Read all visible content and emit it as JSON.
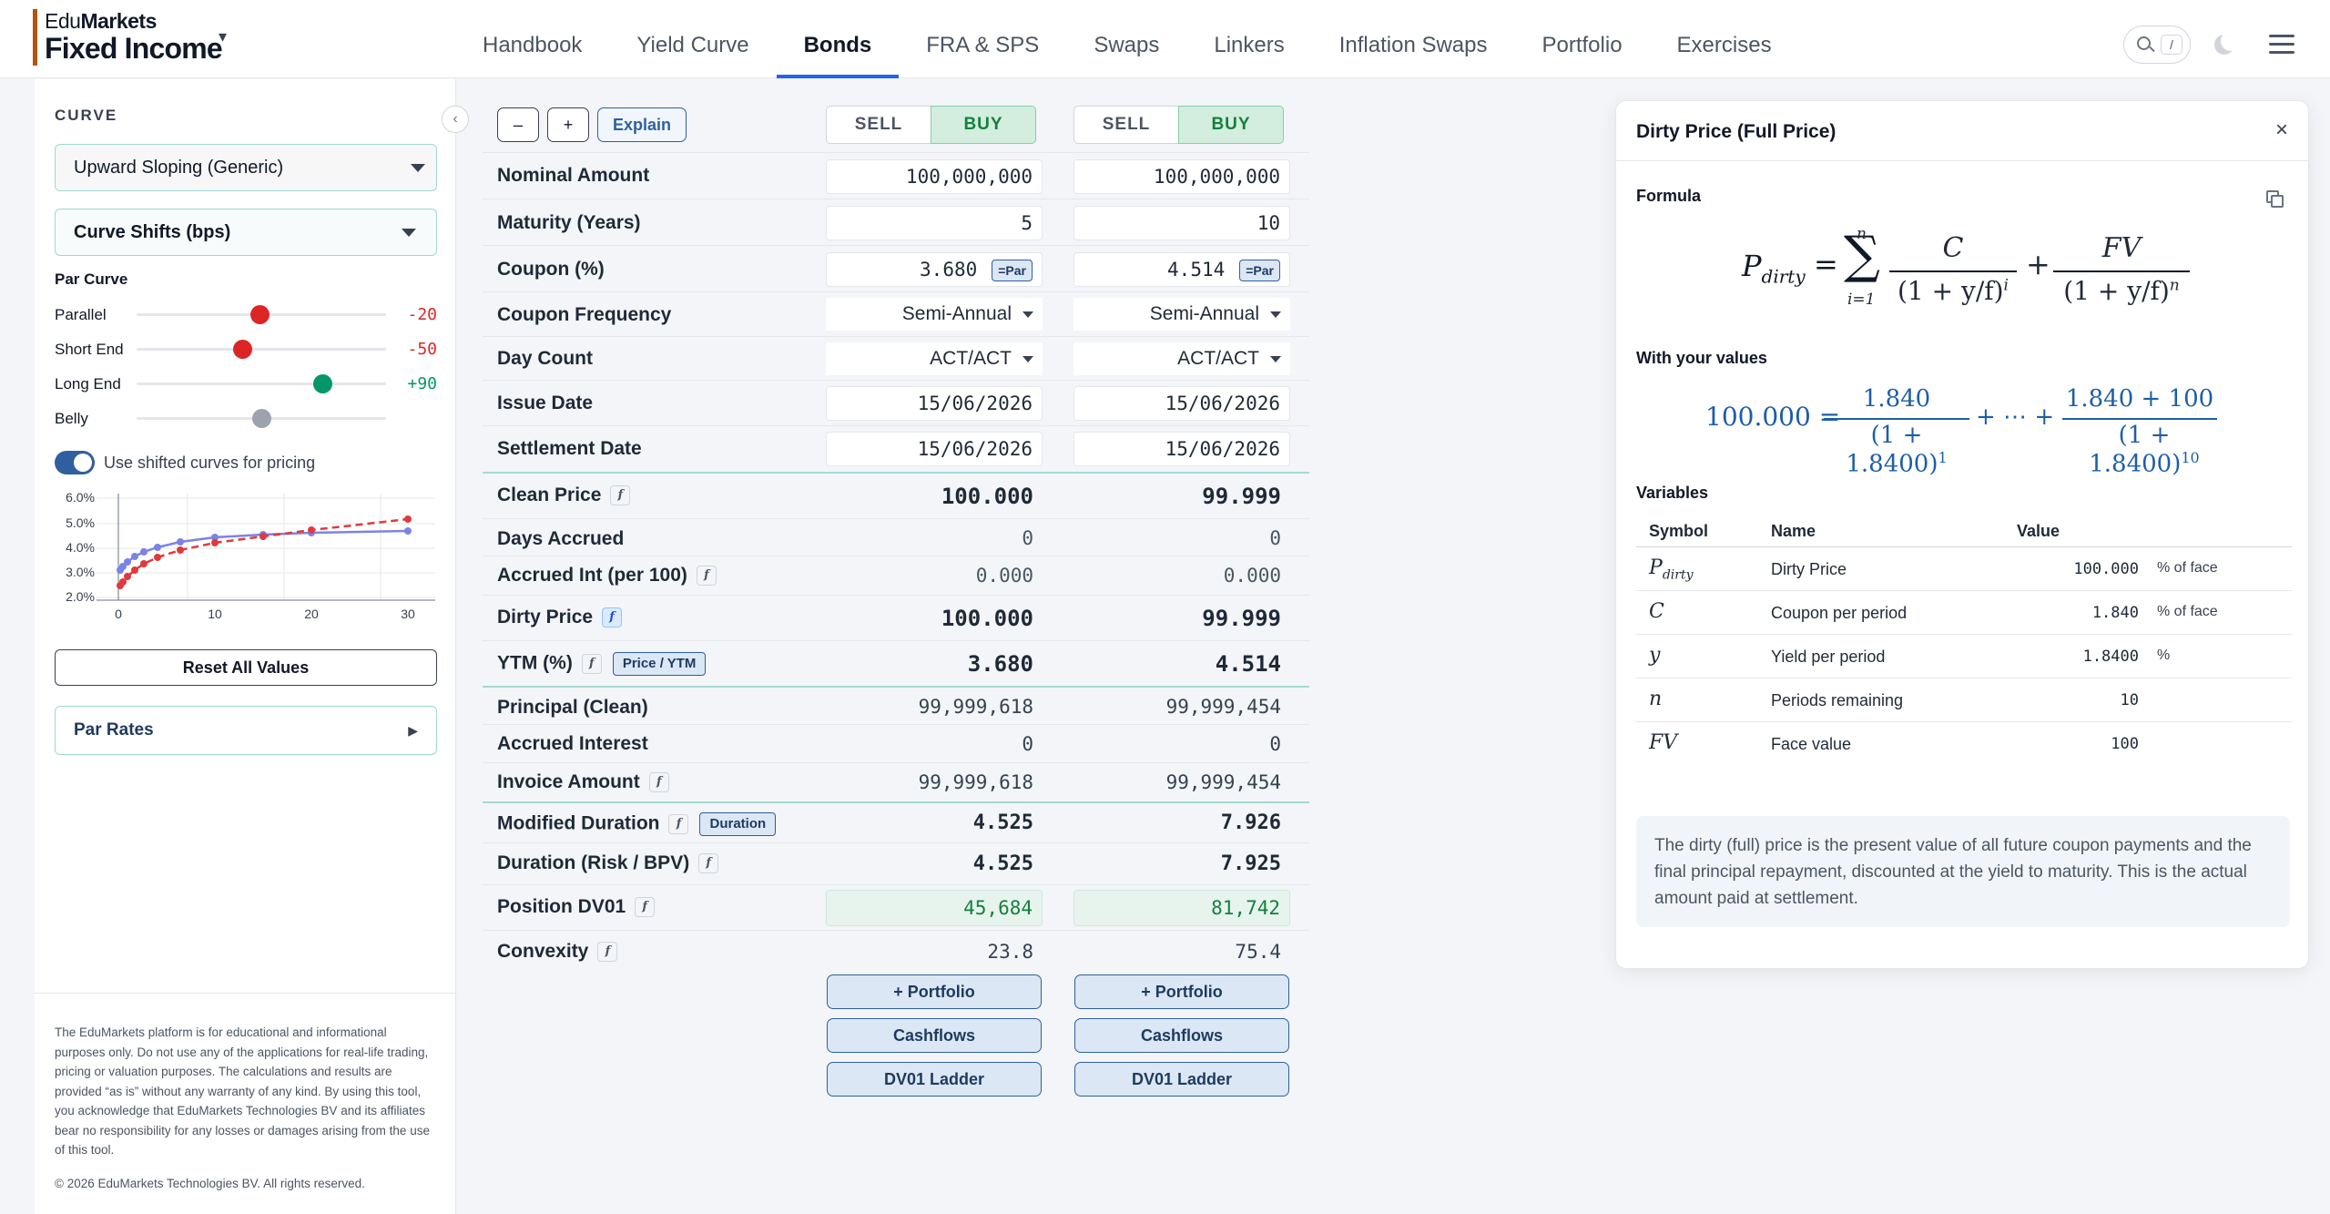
{
  "brand": {
    "top_light": "Edu",
    "top_bold": "Markets",
    "bottom": "Fixed Income",
    "caret": "▾"
  },
  "nav": {
    "items": [
      {
        "label": "Handbook"
      },
      {
        "label": "Yield Curve"
      },
      {
        "label": "Bonds",
        "active": true
      },
      {
        "label": "FRA & SPS"
      },
      {
        "label": "Swaps"
      },
      {
        "label": "Linkers"
      },
      {
        "label": "Inflation Swaps"
      },
      {
        "label": "Portfolio"
      },
      {
        "label": "Exercises"
      }
    ],
    "search_shortcut": "/"
  },
  "sidebar": {
    "collapse": "‹",
    "curve_label": "CURVE",
    "curve_select": "Upward Sloping (Generic)",
    "shifts_select": "Curve Shifts (bps)",
    "par_curve_label": "Par Curve",
    "sliders": [
      {
        "label": "Parallel",
        "value": "-20",
        "color": "#dc2626"
      },
      {
        "label": "Short End",
        "value": "-50",
        "color": "#dc2626"
      },
      {
        "label": "Long End",
        "value": "+90",
        "color": "#059669"
      },
      {
        "label": "Belly",
        "value": "",
        "color": "#9ca3af"
      }
    ],
    "toggle_label": "Use shifted curves for pricing",
    "mini_chart": {
      "y_ticks": [
        "6.0%",
        "5.0%",
        "4.0%",
        "3.0%",
        "2.0%"
      ],
      "x_ticks": [
        "0",
        "10",
        "20",
        "30"
      ],
      "base_color": "#7b83e6",
      "shift_color": "#e0393e"
    },
    "reset_button": "Reset All Values",
    "par_rates": "Par Rates",
    "par_rates_arrow": "▶",
    "disclaimer": "The EduMarkets platform is for educational and informational purposes only. Do not use any of the applications for real-life trading, pricing or valuation purposes. The calculations and results are provided “as is” without any warranty of any kind. By using this tool, you acknowledge that EduMarkets Technologies BV and its affiliates bear no responsibility for any losses or damages arising from the use of this tool.",
    "copyright": "© 2026 EduMarkets Technologies BV. All rights reserved."
  },
  "toolbar": {
    "minus": "–",
    "plus": "+",
    "explain": "Explain",
    "sell": "SELL",
    "buy": "BUY"
  },
  "rows": {
    "nominal": {
      "label": "Nominal Amount",
      "a": "100,000,000",
      "b": "100,000,000"
    },
    "maturity": {
      "label": "Maturity (Years)",
      "a": "5",
      "b": "10"
    },
    "coupon": {
      "label": "Coupon (%)",
      "a": "3.680",
      "b": "4.514",
      "par": "=Par"
    },
    "frequency": {
      "label": "Coupon Frequency",
      "a": "Semi-Annual",
      "b": "Semi-Annual"
    },
    "daycount": {
      "label": "Day Count",
      "a": "ACT/ACT",
      "b": "ACT/ACT"
    },
    "issue": {
      "label": "Issue Date",
      "a": "15/06/2026",
      "b": "15/06/2026"
    },
    "settlement": {
      "label": "Settlement Date",
      "a": "15/06/2026",
      "b": "15/06/2026"
    },
    "clean": {
      "label": "Clean Price",
      "a": "100.000",
      "b": "99.999"
    },
    "days_accrued": {
      "label": "Days Accrued",
      "a": "0",
      "b": "0"
    },
    "accrued_int": {
      "label": "Accrued Int (per 100)",
      "a": "0.000",
      "b": "0.000"
    },
    "dirty": {
      "label": "Dirty Price",
      "a": "100.000",
      "b": "99.999"
    },
    "ytm": {
      "label": "YTM (%)",
      "a": "3.680",
      "b": "4.514",
      "tag": "Price / YTM"
    },
    "principal": {
      "label": "Principal (Clean)",
      "a": "99,999,618",
      "b": "99,999,454"
    },
    "accrued_interest": {
      "label": "Accrued Interest",
      "a": "0",
      "b": "0"
    },
    "invoice": {
      "label": "Invoice Amount",
      "a": "99,999,618",
      "b": "99,999,454"
    },
    "mod_duration": {
      "label": "Modified Duration",
      "a": "4.525",
      "b": "7.926",
      "tag": "Duration"
    },
    "risk_duration": {
      "label": "Duration (Risk / BPV)",
      "a": "4.525",
      "b": "7.925"
    },
    "dv01": {
      "label": "Position DV01",
      "a": "45,684",
      "b": "81,742"
    },
    "convexity": {
      "label": "Convexity",
      "a": "23.8",
      "b": "75.4"
    }
  },
  "fx_glyph": "f",
  "actions": {
    "portfolio": "+ Portfolio",
    "cashflows": "Cashflows",
    "ladder": "DV01 Ladder"
  },
  "panel": {
    "title": "Dirty Price (Full Price)",
    "close": "×",
    "formula_label": "Formula",
    "values_label": "With your values",
    "variables_label": "Variables",
    "formula": {
      "lhs": "P",
      "lhs_sub": "dirty",
      "sum_top": "n",
      "sum_bottom": "i=1",
      "term1_num": "C",
      "term1_den": "(1 + y/f)",
      "term1_exp": "i",
      "term2_num": "FV",
      "term2_den": "(1 + y/f)",
      "term2_exp": "n"
    },
    "values_formula": {
      "lhs": "100.000",
      "num1": "1.840",
      "den1": "(1 + 1.8400)",
      "exp1": "1",
      "dots": "+ ⋯ +",
      "num2": "1.840 + 100",
      "den2": "(1 + 1.8400)",
      "exp2": "10"
    },
    "headers": {
      "symbol": "Symbol",
      "name": "Name",
      "value": "Value"
    },
    "variables": [
      {
        "symbol": "P",
        "sub": "dirty",
        "name": "Dirty Price",
        "value": "100.000",
        "unit": "% of face"
      },
      {
        "symbol": "C",
        "sub": "",
        "name": "Coupon per period",
        "value": "1.840",
        "unit": "% of face"
      },
      {
        "symbol": "y",
        "sub": "",
        "name": "Yield per period",
        "value": "1.8400",
        "unit": "%"
      },
      {
        "symbol": "n",
        "sub": "",
        "name": "Periods remaining",
        "value": "10",
        "unit": ""
      },
      {
        "symbol": "FV",
        "sub": "",
        "name": "Face value",
        "value": "100",
        "unit": ""
      }
    ],
    "description": "The dirty (full) price is the present value of all future coupon payments and the final principal repayment, discounted at the yield to maturity. This is the actual amount paid at settlement."
  }
}
